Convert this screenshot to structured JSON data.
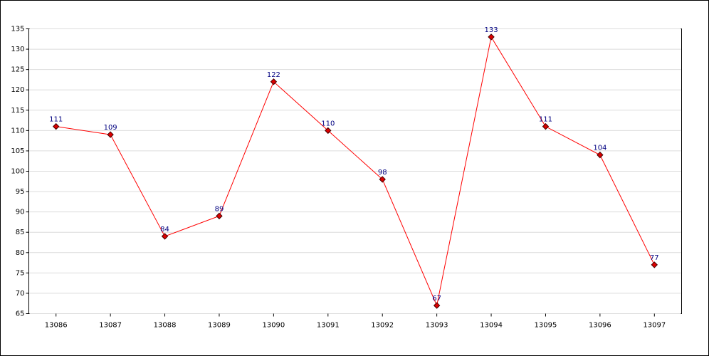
{
  "chart_data": {
    "type": "line",
    "categories": [
      "13086",
      "13087",
      "13088",
      "13089",
      "13090",
      "13091",
      "13092",
      "13093",
      "13094",
      "13095",
      "13096",
      "13097"
    ],
    "values": [
      111,
      109,
      84,
      89,
      122,
      110,
      98,
      67,
      133,
      111,
      104,
      77
    ],
    "color": "#ff0000",
    "marker_color": "#dd0000",
    "ylim": [
      65,
      135
    ],
    "yticks": [
      65,
      70,
      75,
      80,
      85,
      90,
      95,
      100,
      105,
      110,
      115,
      120,
      125,
      130,
      135
    ],
    "grid": true
  }
}
